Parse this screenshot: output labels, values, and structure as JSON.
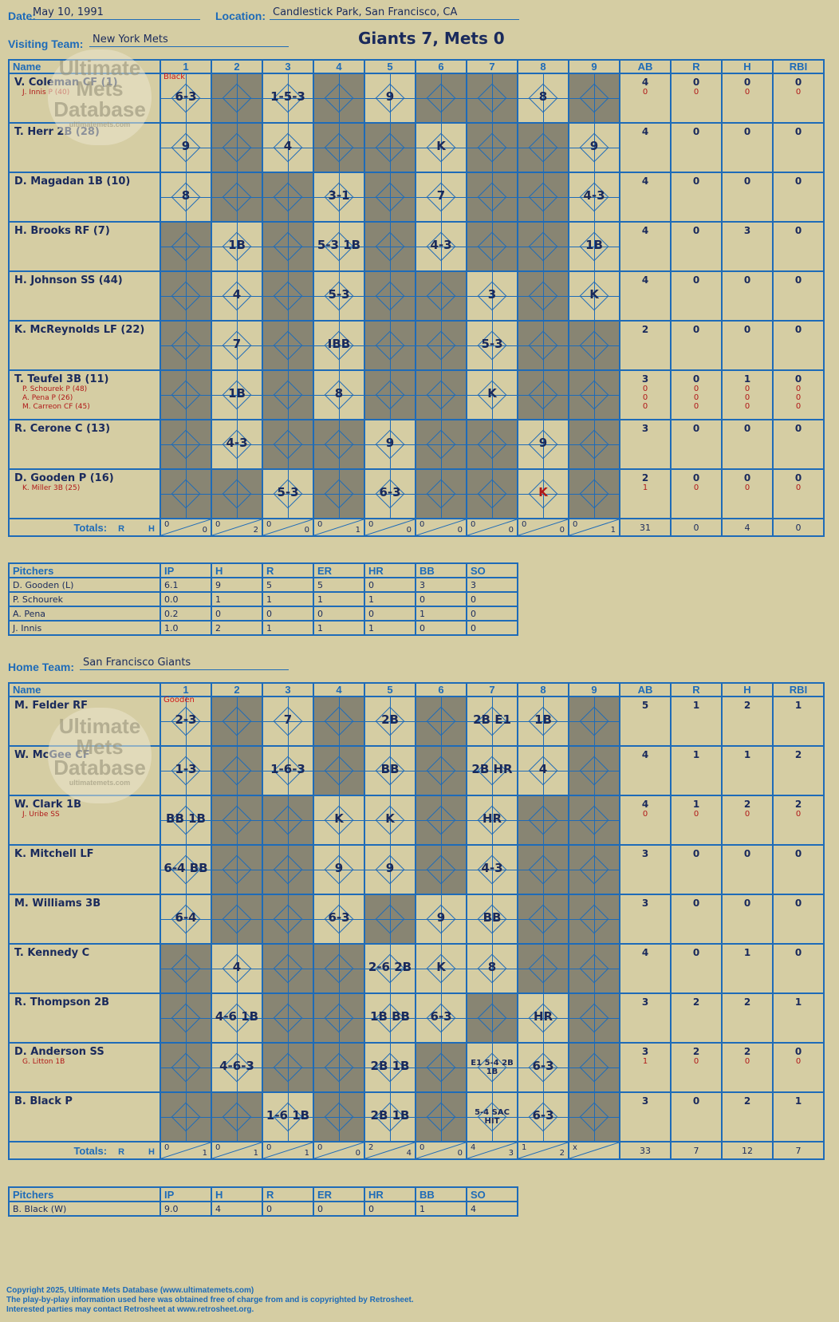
{
  "header": {
    "date_label": "Date:",
    "date": "May 10, 1991",
    "location_label": "Location:",
    "location": "Candlestick Park, San Francisco, CA",
    "visiting_label": "Visiting Team:",
    "visiting": "New York Mets",
    "home_label": "Home Team:",
    "home": "San Francisco Giants",
    "title": "Giants 7, Mets 0"
  },
  "columns": {
    "name": "Name",
    "innings": [
      "1",
      "2",
      "3",
      "4",
      "5",
      "6",
      "7",
      "8",
      "9"
    ],
    "stats": [
      "AB",
      "R",
      "H",
      "RBI"
    ],
    "totals": "Totals:",
    "r": "R",
    "h": "H"
  },
  "logo": {
    "line1": "Ultimate",
    "line2": "Mets",
    "line3": "Database",
    "url": "ultimatemets.com"
  },
  "visitors": {
    "batters": [
      {
        "name": "V. Coleman CF (1)",
        "subs": [
          "J. Innis P (40)"
        ],
        "ab": "4",
        "r": "0",
        "h": "0",
        "rbi": "0",
        "sub_stats": [
          [
            "0",
            "0",
            "0",
            "0"
          ]
        ],
        "cells": [
          "6-3",
          "",
          "1-5-3",
          "",
          "9",
          "",
          "",
          "8",
          ""
        ]
      },
      {
        "name": "T. Herr 2B (28)",
        "subs": [],
        "ab": "4",
        "r": "0",
        "h": "0",
        "rbi": "0",
        "sub_stats": [],
        "cells": [
          "9",
          "",
          "4",
          "",
          "",
          "K",
          "",
          "",
          "9"
        ]
      },
      {
        "name": "D. Magadan 1B (10)",
        "subs": [],
        "ab": "4",
        "r": "0",
        "h": "0",
        "rbi": "0",
        "sub_stats": [],
        "cells": [
          "8",
          "",
          "",
          "3-1",
          "",
          "7",
          "",
          "",
          "4-3"
        ]
      },
      {
        "name": "H. Brooks RF (7)",
        "subs": [],
        "ab": "4",
        "r": "0",
        "h": "3",
        "rbi": "0",
        "sub_stats": [],
        "cells": [
          "",
          "1B",
          "",
          "5-3 1B",
          "",
          "4-3",
          "",
          "",
          "1B"
        ]
      },
      {
        "name": "H. Johnson SS (44)",
        "subs": [],
        "ab": "4",
        "r": "0",
        "h": "0",
        "rbi": "0",
        "sub_stats": [],
        "cells": [
          "",
          "4",
          "",
          "5-3",
          "",
          "",
          "3",
          "",
          "K"
        ]
      },
      {
        "name": "K. McReynolds LF (22)",
        "subs": [],
        "ab": "2",
        "r": "0",
        "h": "0",
        "rbi": "0",
        "sub_stats": [],
        "cells": [
          "",
          "7",
          "",
          "IBB",
          "",
          "",
          "5-3",
          "",
          ""
        ]
      },
      {
        "name": "T. Teufel 3B (11)",
        "subs": [
          "P. Schourek P (48)",
          "A. Pena P (26)",
          "M. Carreon CF (45)"
        ],
        "ab": "3",
        "r": "0",
        "h": "1",
        "rbi": "0",
        "sub_stats": [
          [
            "0",
            "0",
            "0",
            "0"
          ],
          [
            "0",
            "0",
            "0",
            "0"
          ],
          [
            "0",
            "0",
            "0",
            "0"
          ]
        ],
        "cells": [
          "",
          "1B",
          "",
          "8",
          "",
          "",
          "K",
          "",
          ""
        ]
      },
      {
        "name": "R. Cerone C (13)",
        "subs": [],
        "ab": "3",
        "r": "0",
        "h": "0",
        "rbi": "0",
        "sub_stats": [],
        "cells": [
          "",
          "4-3",
          "",
          "",
          "9",
          "",
          "",
          "9",
          ""
        ]
      },
      {
        "name": "D. Gooden P (16)",
        "subs": [
          "K. Miller 3B (25)"
        ],
        "ab": "2",
        "r": "0",
        "h": "0",
        "rbi": "0",
        "sub_stats": [
          [
            "1",
            "0",
            "0",
            "0"
          ]
        ],
        "cells": [
          "",
          "",
          "5-3",
          "",
          "6-3",
          "",
          "",
          "K",
          ""
        ]
      }
    ],
    "totals": [
      [
        "0",
        "0"
      ],
      [
        "0",
        "2"
      ],
      [
        "0",
        "0"
      ],
      [
        "0",
        "1"
      ],
      [
        "0",
        "0"
      ],
      [
        "0",
        "0"
      ],
      [
        "0",
        "0"
      ],
      [
        "0",
        "0"
      ],
      [
        "0",
        "1"
      ]
    ],
    "totals_stats": [
      "31",
      "0",
      "4",
      "0"
    ],
    "note_pitcher_1": "Black"
  },
  "visitor_pitching": {
    "headers": [
      "Pitchers",
      "IP",
      "H",
      "R",
      "ER",
      "HR",
      "BB",
      "SO"
    ],
    "rows": [
      [
        "D. Gooden (L)",
        "6.1",
        "9",
        "5",
        "5",
        "0",
        "3",
        "3"
      ],
      [
        "P. Schourek",
        "0.0",
        "1",
        "1",
        "1",
        "1",
        "0",
        "0"
      ],
      [
        "A. Pena",
        "0.2",
        "0",
        "0",
        "0",
        "0",
        "1",
        "0"
      ],
      [
        "J. Innis",
        "1.0",
        "2",
        "1",
        "1",
        "1",
        "0",
        "0"
      ]
    ]
  },
  "home": {
    "batters": [
      {
        "name": "M. Felder RF",
        "subs": [],
        "ab": "5",
        "r": "1",
        "h": "2",
        "rbi": "1",
        "sub_stats": [],
        "cells": [
          "2-3",
          "",
          "7",
          "",
          "2B",
          "",
          "2B E1",
          "1B",
          ""
        ]
      },
      {
        "name": "W. McGee CF",
        "subs": [],
        "ab": "4",
        "r": "1",
        "h": "1",
        "rbi": "2",
        "sub_stats": [],
        "cells": [
          "1-3",
          "",
          "1-6-3",
          "",
          "BB",
          "",
          "2B HR",
          "4",
          ""
        ]
      },
      {
        "name": "W. Clark 1B",
        "subs": [
          "J. Uribe SS"
        ],
        "ab": "4",
        "r": "1",
        "h": "2",
        "rbi": "2",
        "sub_stats": [
          [
            "0",
            "0",
            "0",
            "0"
          ]
        ],
        "cells": [
          "BB 1B",
          "",
          "",
          "K",
          "K",
          "",
          "HR",
          "",
          ""
        ]
      },
      {
        "name": "K. Mitchell LF",
        "subs": [],
        "ab": "3",
        "r": "0",
        "h": "0",
        "rbi": "0",
        "sub_stats": [],
        "cells": [
          "6-4 BB",
          "",
          "",
          "9",
          "9",
          "",
          "4-3",
          "",
          ""
        ]
      },
      {
        "name": "M. Williams 3B",
        "subs": [],
        "ab": "3",
        "r": "0",
        "h": "0",
        "rbi": "0",
        "sub_stats": [],
        "cells": [
          "6-4",
          "",
          "",
          "6-3",
          "",
          "9",
          "BB",
          "",
          ""
        ]
      },
      {
        "name": "T. Kennedy C",
        "subs": [],
        "ab": "4",
        "r": "0",
        "h": "1",
        "rbi": "0",
        "sub_stats": [],
        "cells": [
          "",
          "4",
          "",
          "",
          "2-6 2B",
          "K",
          "8",
          "",
          ""
        ]
      },
      {
        "name": "R. Thompson 2B",
        "subs": [],
        "ab": "3",
        "r": "2",
        "h": "2",
        "rbi": "1",
        "sub_stats": [],
        "cells": [
          "",
          "4-6 1B",
          "",
          "",
          "1B BB",
          "6-3",
          "",
          "HR",
          ""
        ]
      },
      {
        "name": "D. Anderson SS",
        "subs": [
          "G. Litton 1B"
        ],
        "ab": "3",
        "r": "2",
        "h": "2",
        "rbi": "0",
        "sub_stats": [
          [
            "1",
            "0",
            "0",
            "0"
          ]
        ],
        "cells": [
          "",
          "4-6-3",
          "",
          "",
          "2B 1B",
          "",
          "E1 5-4 2B 1B",
          "6-3",
          ""
        ]
      },
      {
        "name": "B. Black P",
        "subs": [],
        "ab": "3",
        "r": "0",
        "h": "2",
        "rbi": "1",
        "sub_stats": [],
        "cells": [
          "",
          "",
          "1-6 1B",
          "",
          "2B 1B",
          "",
          "5-4 SAC HIT",
          "6-3",
          ""
        ]
      }
    ],
    "totals": [
      [
        "0",
        "1"
      ],
      [
        "0",
        "1"
      ],
      [
        "0",
        "1"
      ],
      [
        "0",
        "0"
      ],
      [
        "2",
        "4"
      ],
      [
        "0",
        "0"
      ],
      [
        "4",
        "3"
      ],
      [
        "1",
        "2"
      ],
      [
        "x",
        ""
      ]
    ],
    "totals_stats": [
      "33",
      "7",
      "12",
      "7"
    ],
    "note_pitcher_1": "Gooden"
  },
  "home_pitching": {
    "headers": [
      "Pitchers",
      "IP",
      "H",
      "R",
      "ER",
      "HR",
      "BB",
      "SO"
    ],
    "rows": [
      [
        "B. Black (W)",
        "9.0",
        "4",
        "0",
        "0",
        "0",
        "1",
        "4"
      ]
    ]
  },
  "footer": {
    "line1": "Copyright 2025, Ultimate Mets Database (www.ultimatemets.com)",
    "line2": "The play-by-play information used here was obtained free of charge from and is copyrighted by Retrosheet.",
    "line3": "Interested parties may contact Retrosheet at www.retrosheet.org."
  },
  "colors": {
    "background": "#d5cda3",
    "grid": "#1e6bb8",
    "ink": "#1a2a5c",
    "inactive": "#888573",
    "sub_red": "#b01818"
  }
}
